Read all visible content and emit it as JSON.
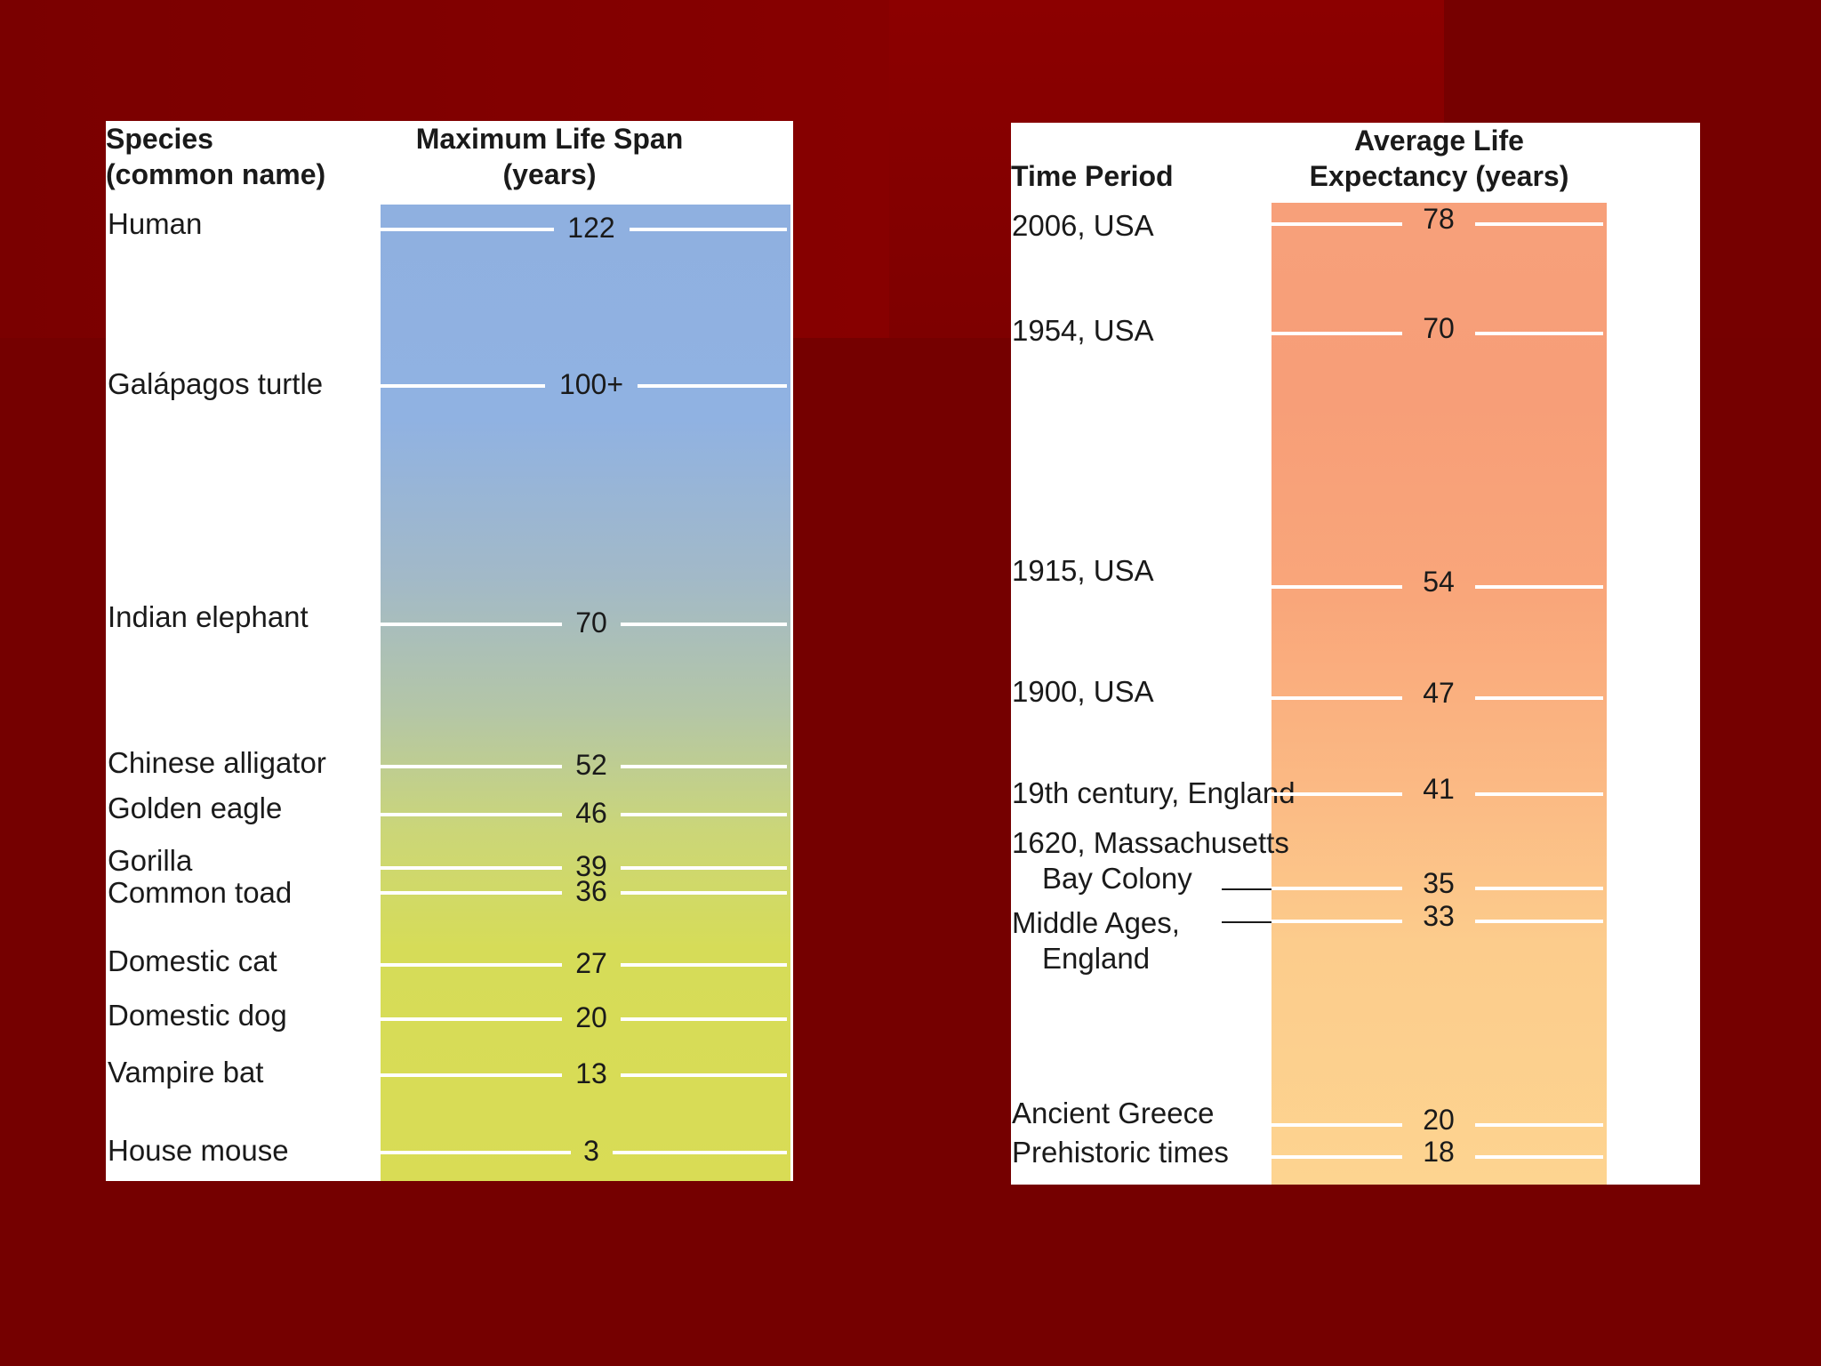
{
  "chart_data": [
    {
      "type": "table",
      "headers": {
        "category": [
          "Species",
          "(common name)"
        ],
        "value": [
          "Maximum Life Span",
          "(years)"
        ]
      },
      "rows": [
        {
          "label": "Human",
          "value": 122,
          "display": "122"
        },
        {
          "label": "Galápagos turtle",
          "value": 100,
          "display": "100+"
        },
        {
          "label": "Indian elephant",
          "value": 70,
          "display": "70"
        },
        {
          "label": "Chinese alligator",
          "value": 52,
          "display": "52"
        },
        {
          "label": "Golden eagle",
          "value": 46,
          "display": "46"
        },
        {
          "label": "Gorilla",
          "value": 39,
          "display": "39"
        },
        {
          "label": "Common toad",
          "value": 36,
          "display": "36"
        },
        {
          "label": "Domestic cat",
          "value": 27,
          "display": "27"
        },
        {
          "label": "Domestic dog",
          "value": 20,
          "display": "20"
        },
        {
          "label": "Vampire bat",
          "value": 13,
          "display": "13"
        },
        {
          "label": "House mouse",
          "value": 3,
          "display": "3"
        }
      ]
    },
    {
      "type": "table",
      "headers": {
        "category": [
          "Time Period"
        ],
        "value": [
          "Average Life",
          "Expectancy (years)"
        ]
      },
      "rows": [
        {
          "label": [
            "2006, USA"
          ],
          "value": 78,
          "display": "78"
        },
        {
          "label": [
            "1954, USA"
          ],
          "value": 70,
          "display": "70"
        },
        {
          "label": [
            "1915, USA"
          ],
          "value": 54,
          "display": "54"
        },
        {
          "label": [
            "1900, USA"
          ],
          "value": 47,
          "display": "47"
        },
        {
          "label": [
            "19th century, England"
          ],
          "value": 41,
          "display": "41"
        },
        {
          "label": [
            "1620, Massachusetts",
            "Bay Colony"
          ],
          "value": 35,
          "display": "35"
        },
        {
          "label": [
            "Middle Ages,",
            "England"
          ],
          "value": 33,
          "display": "33"
        },
        {
          "label": [
            "Ancient Greece"
          ],
          "value": 20,
          "display": "20"
        },
        {
          "label": [
            "Prehistoric times"
          ],
          "value": 18,
          "display": "18"
        }
      ]
    }
  ]
}
